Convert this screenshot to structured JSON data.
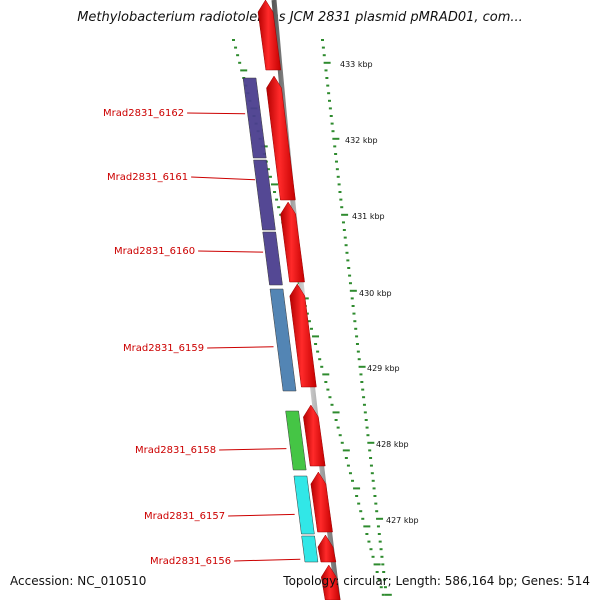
{
  "header": {
    "title": "Methylobacterium radiotolerans JCM 2831 plasmid pMRAD01, com..."
  },
  "footer": {
    "accession": "Accession: NC_010510",
    "topology": "Topology: circular; Length: 586,164 bp; Genes: 514"
  },
  "ticks": [
    {
      "label": "433 kbp"
    },
    {
      "label": "432 kbp"
    },
    {
      "label": "431 kbp"
    },
    {
      "label": "430 kbp"
    },
    {
      "label": "429 kbp"
    },
    {
      "label": "428 kbp"
    },
    {
      "label": "427 kbp"
    }
  ],
  "genes": [
    {
      "name": "Mrad2831_6162",
      "color": "#4b3f8f"
    },
    {
      "name": "Mrad2831_6161",
      "color": "#4b3f8f"
    },
    {
      "name": "Mrad2831_6160",
      "color": "#4b3f8f"
    },
    {
      "name": "Mrad2831_6159",
      "color": "#4a7fb0"
    },
    {
      "name": "Mrad2831_6158",
      "color": "#3cc23c"
    },
    {
      "name": "Mrad2831_6157",
      "color": "#26e6e6"
    },
    {
      "name": "Mrad2831_6156",
      "color": "#26e6e6"
    }
  ],
  "colors": {
    "forward_strand": "#ff1a1a",
    "backbone": "#8c8c8c",
    "tick": "#2e8b2e",
    "label": "#cc0000"
  }
}
